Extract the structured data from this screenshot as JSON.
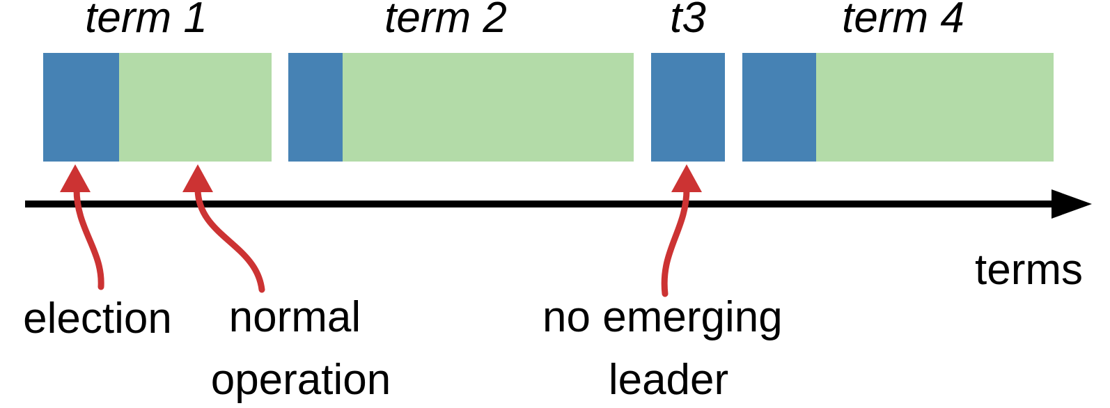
{
  "colors": {
    "election": "#4682b4",
    "normal_operation": "#b3dba8",
    "axis": "#000000",
    "pointer": "#cc3333"
  },
  "terms": [
    {
      "label": "term 1"
    },
    {
      "label": "term 2"
    },
    {
      "label": "t3"
    },
    {
      "label": "term 4"
    }
  ],
  "axis": {
    "label": "terms"
  },
  "annotations": {
    "election": "election",
    "normal_operation": [
      "normal",
      "operation"
    ],
    "no_emerging_leader": [
      "no emerging",
      "leader"
    ]
  }
}
